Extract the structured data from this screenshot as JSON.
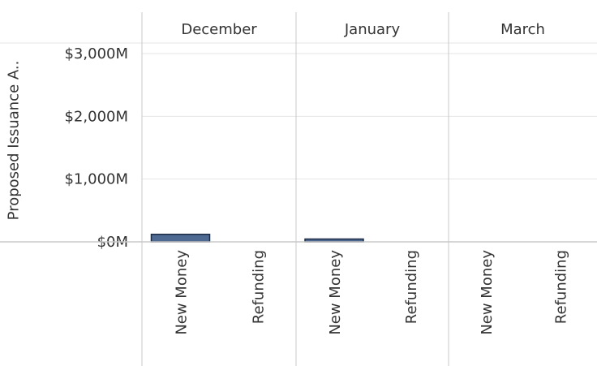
{
  "chart_data": {
    "type": "bar",
    "title": "",
    "xlabel": "",
    "ylabel": "Proposed Issuance A..",
    "ylim": [
      0,
      3000
    ],
    "y_ticks": [
      "$0M",
      "$1,000M",
      "$2,000M",
      "$3,000M"
    ],
    "y_tick_values": [
      0,
      1000,
      2000,
      3000
    ],
    "panels": [
      "December",
      "January",
      "March"
    ],
    "categories": [
      "New Money",
      "Refunding"
    ],
    "series": [
      {
        "values": [
          [
            120,
            0
          ],
          [
            45,
            0
          ],
          [
            0,
            0
          ]
        ]
      }
    ],
    "grid": true,
    "legend": "none"
  },
  "colors": {
    "bar_fill": "#4e6a92",
    "bar_stroke": "#1c2c44",
    "grid": "#e6e6e6",
    "divider": "#c8c8c8",
    "text": "#333333"
  }
}
